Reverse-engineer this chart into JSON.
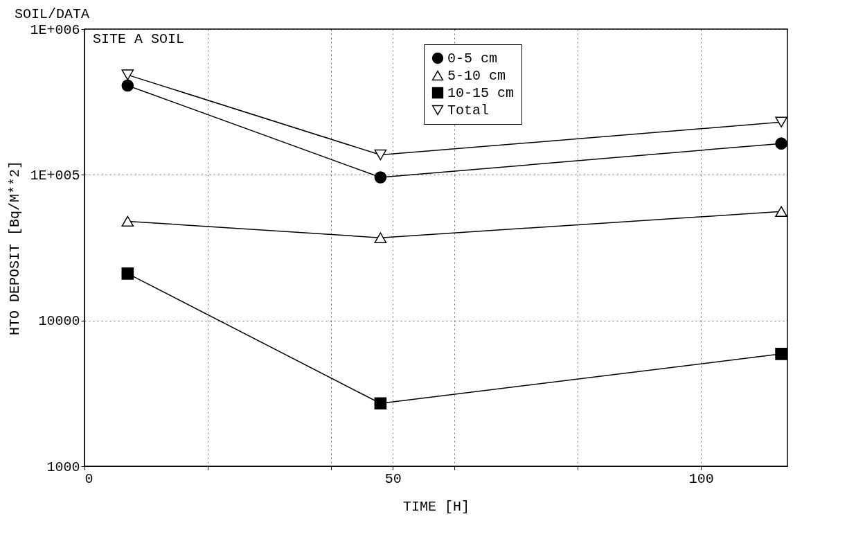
{
  "chart_data": {
    "type": "line",
    "title": "SOIL/DATA",
    "subtitle": "SITE A SOIL",
    "xlabel": "TIME [H]",
    "ylabel": "HTO DEPOSIT [Bq/M**2]",
    "x": [
      7,
      48,
      113
    ],
    "series": [
      {
        "name": "0-5 cm",
        "color": "#000000",
        "marker": "circle",
        "values": [
          410000,
          96000,
          164000
        ]
      },
      {
        "name": "5-10 cm",
        "color": "#000000",
        "marker": "triangle",
        "values": [
          48000,
          37000,
          56000
        ]
      },
      {
        "name": "10-15 cm",
        "color": "#000000",
        "marker": "square",
        "values": [
          21000,
          2700,
          5900
        ]
      },
      {
        "name": "Total",
        "color": "#000000",
        "marker": "triangle-down",
        "values": [
          485000,
          137000,
          230000
        ]
      }
    ],
    "xlim": [
      0,
      114
    ],
    "xticks": [
      0,
      {
        "value": 20,
        "label": null
      },
      {
        "value": 40,
        "label": null
      },
      50,
      {
        "value": 60,
        "label": null
      },
      {
        "value": 80,
        "label": null
      },
      100
    ],
    "ylim": [
      1000,
      1000000
    ],
    "yticks": [
      1000,
      10000,
      {
        "value": 100000,
        "label": "1E+005"
      },
      {
        "value": 1000000,
        "label": "1E+006"
      }
    ],
    "log": true,
    "grid": true,
    "legend": "top right",
    "line_style": "solid"
  }
}
